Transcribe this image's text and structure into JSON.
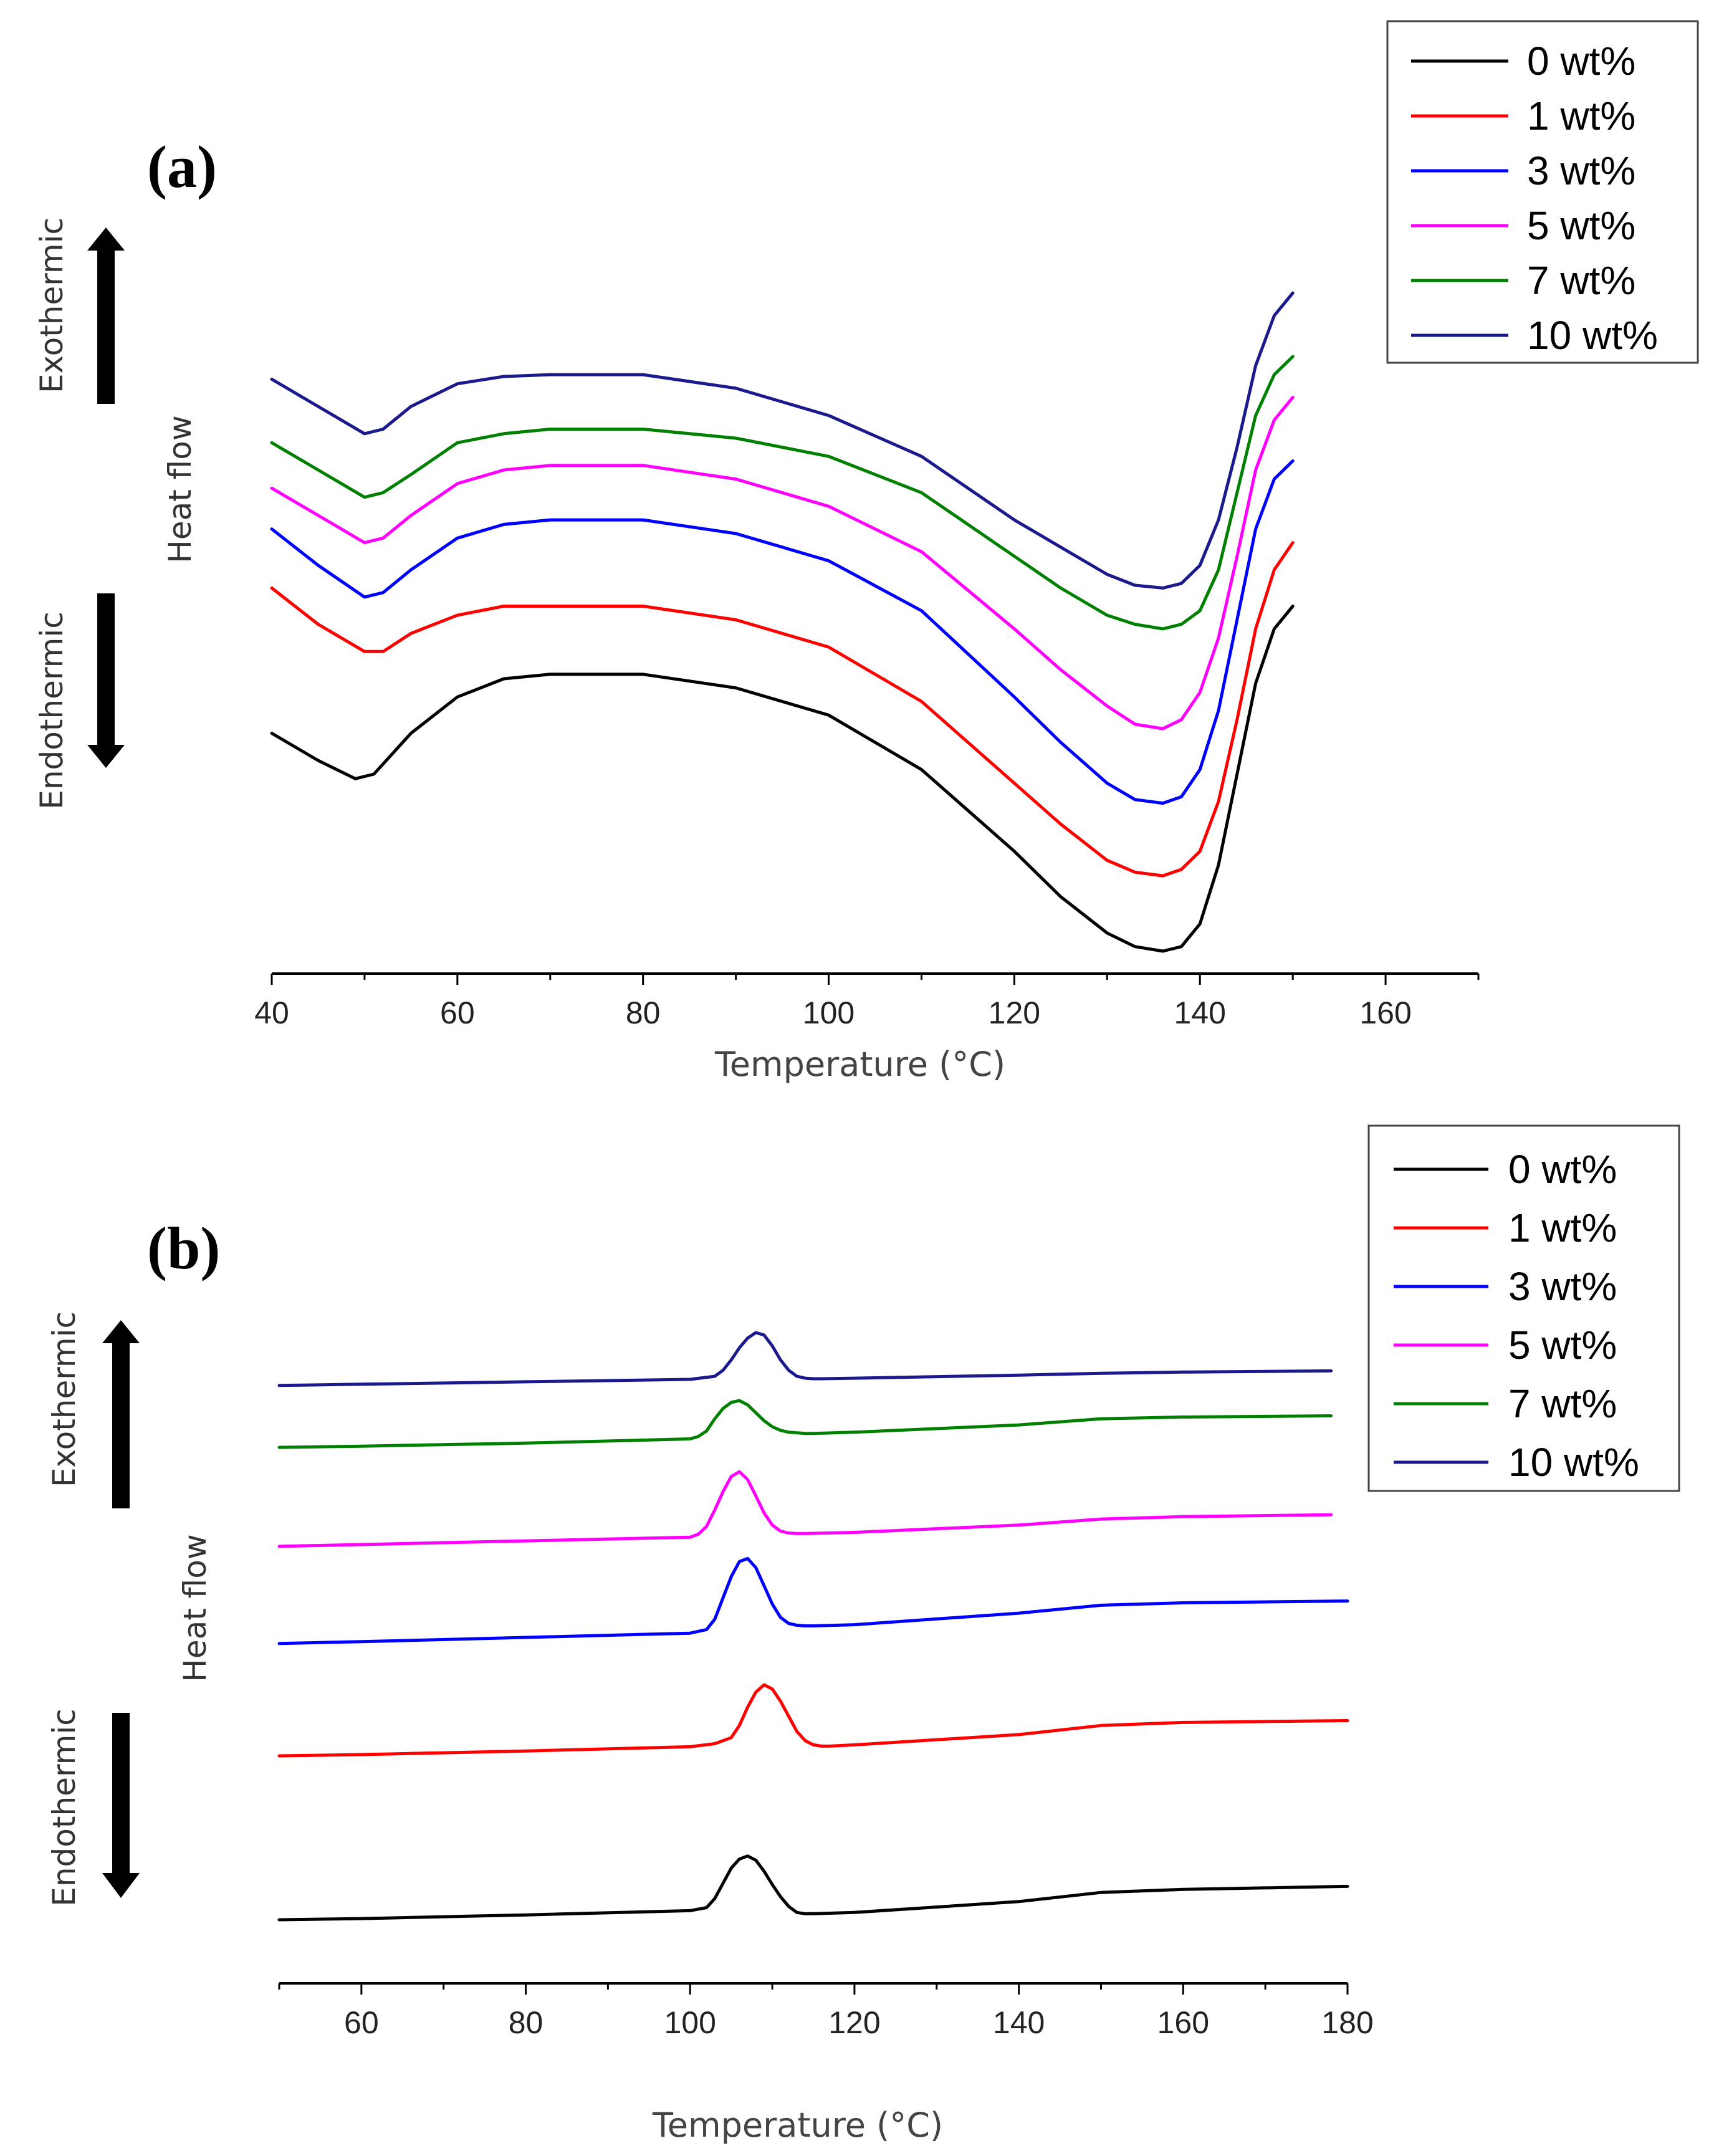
{
  "chart_data": [
    {
      "type": "line",
      "panel_label": "(a)",
      "xlabel": "Temperature (°C)",
      "ylabel": "Heat flow",
      "exo_label": "Exothermic",
      "endo_label": "Endothermic",
      "xlim": [
        40,
        170
      ],
      "x_ticks": [
        40,
        60,
        80,
        100,
        120,
        140,
        160
      ],
      "y_ticks_shown": false,
      "legend_position": "top-right",
      "series": [
        {
          "name": "0 wt%",
          "color": "#000000",
          "x": [
            40,
            45,
            49,
            51,
            55,
            60,
            65,
            70,
            80,
            90,
            100,
            110,
            120,
            125,
            130,
            133,
            136,
            138,
            140,
            142,
            144,
            146,
            148,
            150
          ],
          "y": [
            -4.15,
            -4.45,
            -4.65,
            -4.6,
            -4.15,
            -3.75,
            -3.55,
            -3.5,
            -3.5,
            -3.65,
            -3.95,
            -4.55,
            -5.45,
            -5.95,
            -6.35,
            -6.5,
            -6.55,
            -6.5,
            -6.25,
            -5.6,
            -4.6,
            -3.6,
            -3.0,
            -2.75
          ]
        },
        {
          "name": "1 wt%",
          "color": "#ff0000",
          "x": [
            40,
            45,
            50,
            52,
            55,
            60,
            65,
            70,
            80,
            90,
            100,
            110,
            120,
            125,
            130,
            133,
            136,
            138,
            140,
            142,
            144,
            146,
            148,
            150
          ],
          "y": [
            -2.55,
            -2.95,
            -3.25,
            -3.25,
            -3.05,
            -2.85,
            -2.75,
            -2.75,
            -2.75,
            -2.9,
            -3.2,
            -3.8,
            -4.7,
            -5.15,
            -5.55,
            -5.68,
            -5.72,
            -5.65,
            -5.45,
            -4.9,
            -4.0,
            -3.0,
            -2.35,
            -2.05
          ]
        },
        {
          "name": "3 wt%",
          "color": "#0000ff",
          "x": [
            40,
            45,
            50,
            52,
            55,
            60,
            65,
            70,
            80,
            90,
            100,
            110,
            120,
            125,
            130,
            133,
            136,
            138,
            140,
            142,
            144,
            146,
            148,
            150
          ],
          "y": [
            -1.9,
            -2.3,
            -2.65,
            -2.6,
            -2.35,
            -2.0,
            -1.85,
            -1.8,
            -1.8,
            -1.95,
            -2.25,
            -2.8,
            -3.75,
            -4.25,
            -4.7,
            -4.88,
            -4.92,
            -4.85,
            -4.55,
            -3.9,
            -2.9,
            -1.9,
            -1.35,
            -1.15
          ]
        },
        {
          "name": "5 wt%",
          "color": "#ff00ff",
          "x": [
            40,
            45,
            50,
            52,
            55,
            60,
            65,
            70,
            80,
            90,
            100,
            110,
            120,
            125,
            130,
            133,
            136,
            138,
            140,
            142,
            144,
            146,
            148,
            150
          ],
          "y": [
            -1.45,
            -1.75,
            -2.05,
            -2.0,
            -1.75,
            -1.4,
            -1.25,
            -1.2,
            -1.2,
            -1.35,
            -1.65,
            -2.15,
            -3.0,
            -3.45,
            -3.85,
            -4.05,
            -4.1,
            -4.0,
            -3.7,
            -3.1,
            -2.2,
            -1.25,
            -0.7,
            -0.45
          ]
        },
        {
          "name": "7 wt%",
          "color": "#008000",
          "x": [
            40,
            45,
            50,
            52,
            55,
            60,
            65,
            70,
            80,
            90,
            100,
            110,
            120,
            125,
            130,
            133,
            136,
            138,
            140,
            142,
            144,
            146,
            148,
            150
          ],
          "y": [
            -0.95,
            -1.25,
            -1.55,
            -1.5,
            -1.3,
            -0.95,
            -0.85,
            -0.8,
            -0.8,
            -0.9,
            -1.1,
            -1.5,
            -2.2,
            -2.55,
            -2.85,
            -2.95,
            -3.0,
            -2.95,
            -2.8,
            -2.35,
            -1.5,
            -0.65,
            -0.2,
            0.0
          ]
        },
        {
          "name": "10 wt%",
          "color": "#1a1a8c",
          "x": [
            40,
            45,
            50,
            52,
            55,
            60,
            65,
            70,
            80,
            90,
            100,
            110,
            120,
            125,
            130,
            133,
            136,
            138,
            140,
            142,
            144,
            146,
            148,
            150
          ],
          "y": [
            -0.25,
            -0.55,
            -0.85,
            -0.8,
            -0.55,
            -0.3,
            -0.22,
            -0.2,
            -0.2,
            -0.35,
            -0.65,
            -1.1,
            -1.8,
            -2.1,
            -2.4,
            -2.52,
            -2.55,
            -2.5,
            -2.3,
            -1.8,
            -1.0,
            -0.1,
            0.45,
            0.7
          ]
        }
      ]
    },
    {
      "type": "line",
      "panel_label": "(b)",
      "xlabel": "Temperature (°C)",
      "ylabel": "Heat flow",
      "exo_label": "Exothermic",
      "endo_label": "Endothermic",
      "xlim": [
        50,
        180
      ],
      "x_ticks": [
        60,
        80,
        100,
        120,
        140,
        160,
        180
      ],
      "y_ticks_shown": false,
      "legend_position": "top-right",
      "series": [
        {
          "name": "0 wt%",
          "color": "#000000",
          "x": [
            50,
            60,
            80,
            100,
            102,
            103,
            104,
            105,
            106,
            107,
            108,
            109,
            110,
            111,
            112,
            113,
            114,
            115,
            120,
            140,
            150,
            160,
            180
          ],
          "y": [
            0.0,
            0.02,
            0.08,
            0.15,
            0.2,
            0.35,
            0.6,
            0.85,
            1.0,
            1.05,
            0.98,
            0.8,
            0.58,
            0.38,
            0.22,
            0.12,
            0.1,
            0.1,
            0.12,
            0.3,
            0.45,
            0.5,
            0.55
          ]
        },
        {
          "name": "1 wt%",
          "color": "#ff0000",
          "x": [
            50,
            60,
            80,
            100,
            103,
            105,
            106,
            107,
            108,
            109,
            110,
            111,
            112,
            113,
            114,
            115,
            116,
            117,
            120,
            140,
            150,
            160,
            180
          ],
          "y": [
            2.7,
            2.72,
            2.78,
            2.85,
            2.9,
            3.0,
            3.2,
            3.5,
            3.75,
            3.87,
            3.8,
            3.6,
            3.35,
            3.1,
            2.95,
            2.88,
            2.86,
            2.86,
            2.88,
            3.05,
            3.2,
            3.25,
            3.28
          ]
        },
        {
          "name": "3 wt%",
          "color": "#0000ff",
          "x": [
            50,
            60,
            80,
            100,
            102,
            103,
            104,
            105,
            106,
            107,
            108,
            109,
            110,
            111,
            112,
            113,
            114,
            115,
            120,
            140,
            150,
            160,
            180
          ],
          "y": [
            4.55,
            4.58,
            4.65,
            4.72,
            4.78,
            4.95,
            5.3,
            5.65,
            5.9,
            5.95,
            5.8,
            5.5,
            5.2,
            4.98,
            4.88,
            4.85,
            4.84,
            4.84,
            4.86,
            5.05,
            5.18,
            5.22,
            5.25
          ]
        },
        {
          "name": "5 wt%",
          "color": "#ff00ff",
          "x": [
            50,
            60,
            80,
            100,
            101,
            102,
            103,
            104,
            105,
            106,
            107,
            108,
            109,
            110,
            111,
            112,
            113,
            114,
            120,
            140,
            150,
            160,
            178
          ],
          "y": [
            6.15,
            6.18,
            6.24,
            6.3,
            6.35,
            6.48,
            6.75,
            7.05,
            7.3,
            7.38,
            7.25,
            6.98,
            6.7,
            6.5,
            6.4,
            6.37,
            6.36,
            6.36,
            6.38,
            6.5,
            6.6,
            6.64,
            6.67
          ]
        },
        {
          "name": "7 wt%",
          "color": "#008000",
          "x": [
            50,
            60,
            80,
            100,
            101,
            102,
            103,
            104,
            105,
            106,
            107,
            108,
            109,
            110,
            111,
            112,
            113,
            114,
            115,
            120,
            140,
            150,
            160,
            178
          ],
          "y": [
            7.78,
            7.8,
            7.85,
            7.92,
            7.96,
            8.05,
            8.25,
            8.42,
            8.52,
            8.55,
            8.48,
            8.35,
            8.22,
            8.12,
            8.06,
            8.03,
            8.02,
            8.01,
            8.01,
            8.03,
            8.15,
            8.25,
            8.28,
            8.3
          ]
        },
        {
          "name": "10 wt%",
          "color": "#1a1a8c",
          "x": [
            50,
            60,
            80,
            100,
            103,
            104,
            105,
            106,
            107,
            108,
            109,
            110,
            111,
            112,
            113,
            114,
            115,
            116,
            120,
            140,
            150,
            160,
            178
          ],
          "y": [
            8.8,
            8.82,
            8.86,
            8.9,
            8.95,
            9.05,
            9.22,
            9.42,
            9.58,
            9.67,
            9.63,
            9.45,
            9.22,
            9.05,
            8.95,
            8.92,
            8.91,
            8.91,
            8.92,
            8.97,
            9.0,
            9.02,
            9.04
          ]
        }
      ]
    }
  ]
}
